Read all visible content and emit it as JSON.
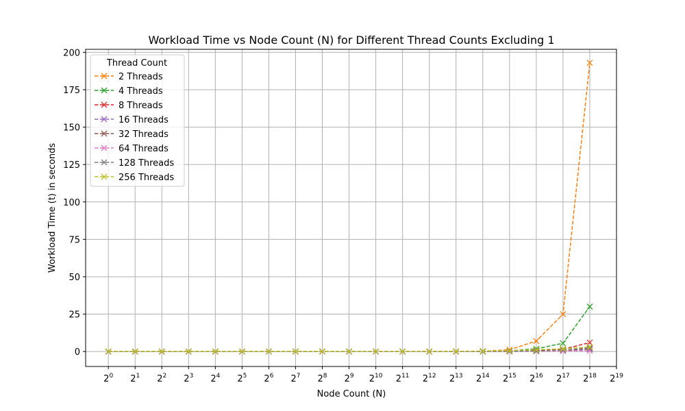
{
  "chart_data": {
    "type": "line",
    "title": "Workload Time vs Node Count (N) for Different Thread Counts Excluding 1",
    "xlabel": "Node Count (N)",
    "ylabel": "Workload Time (t) in seconds",
    "x_scale": "log2",
    "x_ticks": [
      {
        "base": "2",
        "exp": "0"
      },
      {
        "base": "2",
        "exp": "1"
      },
      {
        "base": "2",
        "exp": "2"
      },
      {
        "base": "2",
        "exp": "3"
      },
      {
        "base": "2",
        "exp": "4"
      },
      {
        "base": "2",
        "exp": "5"
      },
      {
        "base": "2",
        "exp": "6"
      },
      {
        "base": "2",
        "exp": "7"
      },
      {
        "base": "2",
        "exp": "8"
      },
      {
        "base": "2",
        "exp": "9"
      },
      {
        "base": "2",
        "exp": "10"
      },
      {
        "base": "2",
        "exp": "11"
      },
      {
        "base": "2",
        "exp": "12"
      },
      {
        "base": "2",
        "exp": "13"
      },
      {
        "base": "2",
        "exp": "14"
      },
      {
        "base": "2",
        "exp": "15"
      },
      {
        "base": "2",
        "exp": "16"
      },
      {
        "base": "2",
        "exp": "17"
      },
      {
        "base": "2",
        "exp": "18"
      },
      {
        "base": "2",
        "exp": "19"
      }
    ],
    "y_ticks": [
      "0",
      "25",
      "50",
      "75",
      "100",
      "125",
      "150",
      "175",
      "200"
    ],
    "xlim": [
      1,
      524288
    ],
    "ylim": [
      -10,
      202
    ],
    "grid": true,
    "legend": {
      "title": "Thread Count",
      "position": "top-left"
    },
    "x": [
      1,
      2,
      4,
      8,
      16,
      32,
      64,
      128,
      256,
      512,
      1024,
      2048,
      4096,
      8192,
      16384,
      32768,
      65536,
      131072,
      262144
    ],
    "series": [
      {
        "name": "2 Threads",
        "color": "#ff7f0e",
        "values": [
          0,
          0,
          0,
          0,
          0,
          0,
          0,
          0,
          0,
          0,
          0,
          0,
          0.01,
          0.05,
          0.2,
          1.2,
          7,
          25,
          193
        ]
      },
      {
        "name": "4 Threads",
        "color": "#2ca02c",
        "values": [
          0,
          0,
          0,
          0,
          0,
          0,
          0,
          0,
          0,
          0,
          0,
          0,
          0,
          0.02,
          0.1,
          0.5,
          1.8,
          5.5,
          30
        ]
      },
      {
        "name": "8 Threads",
        "color": "#d62728",
        "values": [
          0,
          0,
          0,
          0,
          0,
          0,
          0,
          0,
          0,
          0,
          0,
          0,
          0,
          0.01,
          0.05,
          0.2,
          0.6,
          1.5,
          6
        ]
      },
      {
        "name": "16 Threads",
        "color": "#9467bd",
        "values": [
          0,
          0,
          0,
          0,
          0,
          0,
          0,
          0,
          0,
          0,
          0,
          0,
          0,
          0,
          0.02,
          0.08,
          0.25,
          0.6,
          1.5
        ]
      },
      {
        "name": "32 Threads",
        "color": "#8c564b",
        "values": [
          0,
          0,
          0,
          0,
          0,
          0,
          0,
          0,
          0,
          0,
          0,
          0,
          0,
          0,
          0.02,
          0.1,
          0.3,
          0.8,
          2
        ]
      },
      {
        "name": "64 Threads",
        "color": "#e377c2",
        "values": [
          0,
          0,
          0,
          0,
          0,
          0,
          0,
          0,
          0,
          0,
          0,
          0,
          0,
          0,
          0.01,
          0.05,
          0.15,
          0.3,
          0.5
        ]
      },
      {
        "name": "128 Threads",
        "color": "#7f7f7f",
        "values": [
          0,
          0,
          0,
          0,
          0,
          0,
          0,
          0,
          0,
          0,
          0,
          0,
          0,
          0,
          0.02,
          0.1,
          0.3,
          0.9,
          2.5
        ]
      },
      {
        "name": "256 Threads",
        "color": "#bcbd22",
        "values": [
          0.1,
          0.1,
          0.1,
          0.1,
          0.1,
          0.1,
          0.1,
          0.1,
          0.1,
          0.1,
          0.1,
          0.1,
          0.1,
          0.15,
          0.3,
          0.6,
          1.2,
          1.8,
          3
        ]
      }
    ]
  }
}
